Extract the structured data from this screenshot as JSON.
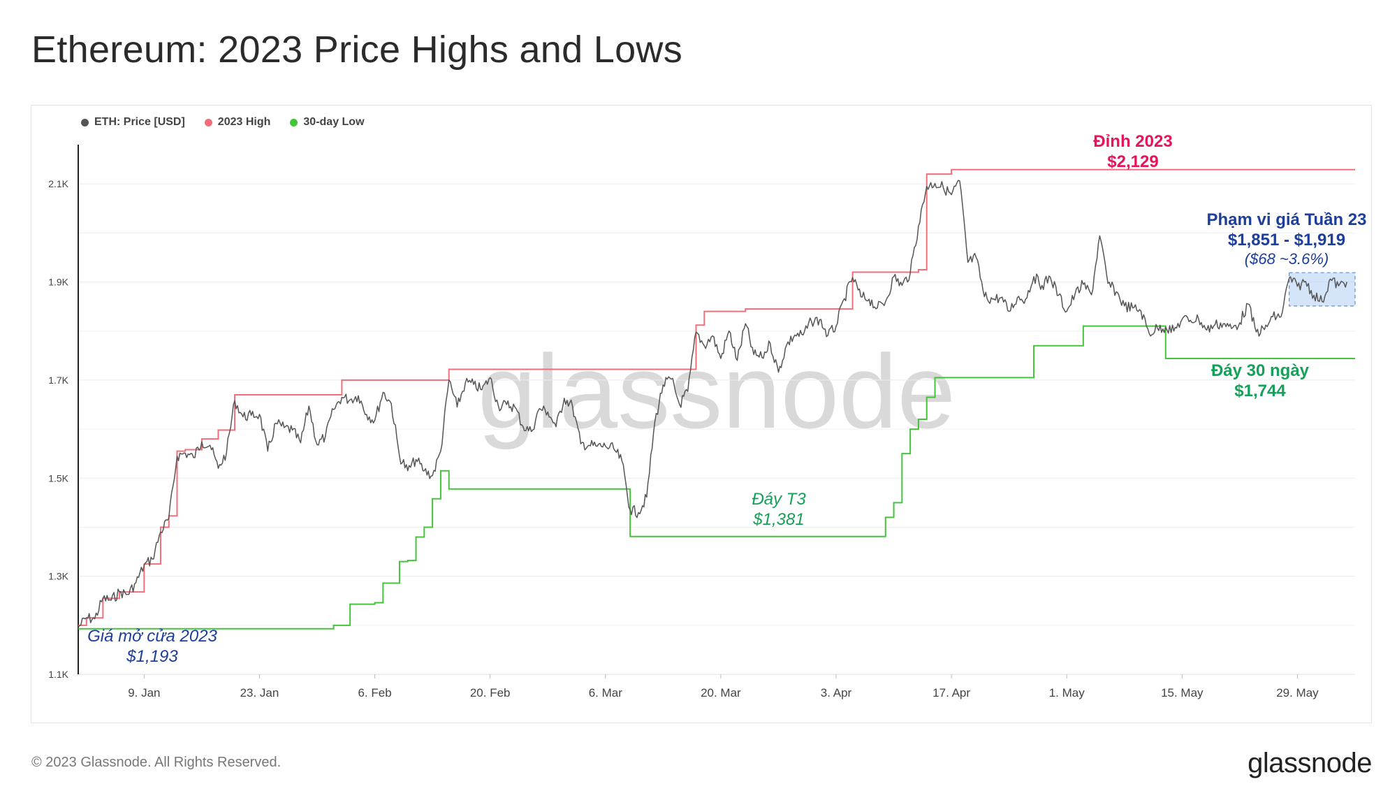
{
  "title": "Ethereum: 2023 Price Highs and Lows",
  "footer": {
    "copyright": "© 2023 Glassnode. All Rights Reserved.",
    "logo": "glassnode"
  },
  "watermark": "glassnode",
  "colors": {
    "price": "#555555",
    "high": "#f26e7b",
    "low": "#43c43b",
    "band": "#9fc4f2"
  },
  "chart_data": {
    "type": "line",
    "xlabel": "",
    "ylabel": "",
    "ylim": [
      1100,
      2180
    ],
    "y_ticks": [
      {
        "v": 1100,
        "label": "1.1K"
      },
      {
        "v": 1300,
        "label": "1.3K"
      },
      {
        "v": 1500,
        "label": "1.5K"
      },
      {
        "v": 1700,
        "label": "1.7K"
      },
      {
        "v": 1900,
        "label": "1.9K"
      },
      {
        "v": 2100,
        "label": "2.1K"
      }
    ],
    "x_range": [
      "2023-01-01",
      "2023-06-05"
    ],
    "x_ticks": [
      {
        "date": "2023-01-09",
        "label": "9. Jan"
      },
      {
        "date": "2023-01-23",
        "label": "23. Jan"
      },
      {
        "date": "2023-02-06",
        "label": "6. Feb"
      },
      {
        "date": "2023-02-20",
        "label": "20. Feb"
      },
      {
        "date": "2023-03-06",
        "label": "6. Mar"
      },
      {
        "date": "2023-03-20",
        "label": "20. Mar"
      },
      {
        "date": "2023-04-03",
        "label": "3. Apr"
      },
      {
        "date": "2023-04-17",
        "label": "17. Apr"
      },
      {
        "date": "2023-05-01",
        "label": "1. May"
      },
      {
        "date": "2023-05-15",
        "label": "15. May"
      },
      {
        "date": "2023-05-29",
        "label": "29. May"
      }
    ],
    "legend": [
      {
        "name": "ETH: Price [USD]",
        "color": "#555555"
      },
      {
        "name": "2023 High",
        "color": "#f26e7b"
      },
      {
        "name": "30-day Low",
        "color": "#43c43b"
      }
    ],
    "series": [
      {
        "name": "ETH: Price [USD]",
        "points": [
          [
            "2023-01-01",
            1196
          ],
          [
            "2023-01-02",
            1215
          ],
          [
            "2023-01-03",
            1213
          ],
          [
            "2023-01-04",
            1255
          ],
          [
            "2023-01-05",
            1251
          ],
          [
            "2023-01-06",
            1268
          ],
          [
            "2023-01-07",
            1263
          ],
          [
            "2023-01-08",
            1287
          ],
          [
            "2023-01-09",
            1322
          ],
          [
            "2023-01-10",
            1335
          ],
          [
            "2023-01-11",
            1390
          ],
          [
            "2023-01-12",
            1418
          ],
          [
            "2023-01-13",
            1545
          ],
          [
            "2023-01-14",
            1551
          ],
          [
            "2023-01-15",
            1542
          ],
          [
            "2023-01-16",
            1574
          ],
          [
            "2023-01-17",
            1567
          ],
          [
            "2023-01-18",
            1520
          ],
          [
            "2023-01-19",
            1552
          ],
          [
            "2023-01-20",
            1658
          ],
          [
            "2023-01-21",
            1625
          ],
          [
            "2023-01-22",
            1628
          ],
          [
            "2023-01-23",
            1630
          ],
          [
            "2023-01-24",
            1555
          ],
          [
            "2023-01-25",
            1612
          ],
          [
            "2023-01-26",
            1603
          ],
          [
            "2023-01-27",
            1598
          ],
          [
            "2023-01-28",
            1572
          ],
          [
            "2023-01-29",
            1647
          ],
          [
            "2023-01-30",
            1568
          ],
          [
            "2023-01-31",
            1585
          ],
          [
            "2023-02-01",
            1640
          ],
          [
            "2023-02-02",
            1665
          ],
          [
            "2023-02-03",
            1660
          ],
          [
            "2023-02-04",
            1668
          ],
          [
            "2023-02-05",
            1630
          ],
          [
            "2023-02-06",
            1618
          ],
          [
            "2023-02-07",
            1675
          ],
          [
            "2023-02-08",
            1652
          ],
          [
            "2023-02-09",
            1545
          ],
          [
            "2023-02-10",
            1515
          ],
          [
            "2023-02-11",
            1538
          ],
          [
            "2023-02-12",
            1515
          ],
          [
            "2023-02-13",
            1505
          ],
          [
            "2023-02-14",
            1555
          ],
          [
            "2023-02-15",
            1700
          ],
          [
            "2023-02-16",
            1645
          ],
          [
            "2023-02-17",
            1695
          ],
          [
            "2023-02-18",
            1691
          ],
          [
            "2023-02-19",
            1680
          ],
          [
            "2023-02-20",
            1705
          ],
          [
            "2023-02-21",
            1647
          ],
          [
            "2023-02-22",
            1650
          ],
          [
            "2023-02-23",
            1645
          ],
          [
            "2023-02-24",
            1605
          ],
          [
            "2023-02-25",
            1595
          ],
          [
            "2023-02-26",
            1642
          ],
          [
            "2023-02-27",
            1635
          ],
          [
            "2023-02-28",
            1605
          ],
          [
            "2023-03-01",
            1663
          ],
          [
            "2023-03-02",
            1647
          ],
          [
            "2023-03-03",
            1570
          ],
          [
            "2023-03-04",
            1567
          ],
          [
            "2023-03-05",
            1565
          ],
          [
            "2023-03-06",
            1565
          ],
          [
            "2023-03-07",
            1560
          ],
          [
            "2023-03-08",
            1535
          ],
          [
            "2023-03-09",
            1435
          ],
          [
            "2023-03-10",
            1430
          ],
          [
            "2023-03-11",
            1461
          ],
          [
            "2023-03-12",
            1615
          ],
          [
            "2023-03-13",
            1690
          ],
          [
            "2023-03-14",
            1702
          ],
          [
            "2023-03-15",
            1650
          ],
          [
            "2023-03-16",
            1677
          ],
          [
            "2023-03-17",
            1798
          ],
          [
            "2023-03-18",
            1770
          ],
          [
            "2023-03-19",
            1790
          ],
          [
            "2023-03-20",
            1744
          ],
          [
            "2023-03-21",
            1800
          ],
          [
            "2023-03-22",
            1740
          ],
          [
            "2023-03-23",
            1815
          ],
          [
            "2023-03-24",
            1752
          ],
          [
            "2023-03-25",
            1746
          ],
          [
            "2023-03-26",
            1775
          ],
          [
            "2023-03-27",
            1716
          ],
          [
            "2023-03-28",
            1772
          ],
          [
            "2023-03-29",
            1792
          ],
          [
            "2023-03-30",
            1792
          ],
          [
            "2023-03-31",
            1820
          ],
          [
            "2023-04-01",
            1823
          ],
          [
            "2023-04-02",
            1791
          ],
          [
            "2023-04-03",
            1810
          ],
          [
            "2023-04-04",
            1866
          ],
          [
            "2023-04-05",
            1909
          ],
          [
            "2023-04-06",
            1870
          ],
          [
            "2023-04-07",
            1865
          ],
          [
            "2023-04-08",
            1847
          ],
          [
            "2023-04-09",
            1860
          ],
          [
            "2023-04-10",
            1911
          ],
          [
            "2023-04-11",
            1893
          ],
          [
            "2023-04-12",
            1918
          ],
          [
            "2023-04-13",
            2014
          ],
          [
            "2023-04-14",
            2095
          ],
          [
            "2023-04-15",
            2101
          ],
          [
            "2023-04-16",
            2093
          ],
          [
            "2023-04-17",
            2078
          ],
          [
            "2023-04-18",
            2106
          ],
          [
            "2023-04-19",
            1940
          ],
          [
            "2023-04-20",
            1950
          ],
          [
            "2023-04-21",
            1870
          ],
          [
            "2023-04-22",
            1865
          ],
          [
            "2023-04-23",
            1868
          ],
          [
            "2023-04-24",
            1840
          ],
          [
            "2023-04-25",
            1868
          ],
          [
            "2023-04-26",
            1865
          ],
          [
            "2023-04-27",
            1911
          ],
          [
            "2023-04-28",
            1893
          ],
          [
            "2023-04-29",
            1910
          ],
          [
            "2023-04-30",
            1873
          ],
          [
            "2023-05-01",
            1840
          ],
          [
            "2023-05-02",
            1875
          ],
          [
            "2023-05-03",
            1895
          ],
          [
            "2023-05-04",
            1874
          ],
          [
            "2023-05-05",
            1994
          ],
          [
            "2023-05-06",
            1897
          ],
          [
            "2023-05-07",
            1880
          ],
          [
            "2023-05-08",
            1851
          ],
          [
            "2023-05-09",
            1847
          ],
          [
            "2023-05-10",
            1841
          ],
          [
            "2023-05-11",
            1795
          ],
          [
            "2023-05-12",
            1806
          ],
          [
            "2023-05-13",
            1808
          ],
          [
            "2023-05-14",
            1800
          ],
          [
            "2023-05-15",
            1824
          ],
          [
            "2023-05-16",
            1822
          ],
          [
            "2023-05-17",
            1825
          ],
          [
            "2023-05-18",
            1802
          ],
          [
            "2023-05-19",
            1813
          ],
          [
            "2023-05-20",
            1815
          ],
          [
            "2023-05-21",
            1805
          ],
          [
            "2023-05-22",
            1817
          ],
          [
            "2023-05-23",
            1855
          ],
          [
            "2023-05-24",
            1798
          ],
          [
            "2023-05-25",
            1803
          ],
          [
            "2023-05-26",
            1829
          ],
          [
            "2023-05-27",
            1829
          ],
          [
            "2023-05-28",
            1908
          ],
          [
            "2023-05-29",
            1891
          ],
          [
            "2023-05-30",
            1901
          ],
          [
            "2023-05-31",
            1873
          ],
          [
            "2023-06-01",
            1860
          ],
          [
            "2023-06-02",
            1906
          ],
          [
            "2023-06-03",
            1892
          ],
          [
            "2023-06-04",
            1900
          ]
        ]
      },
      {
        "name": "2023 High",
        "points": [
          [
            "2023-01-01",
            1200
          ],
          [
            "2023-01-02",
            1215
          ],
          [
            "2023-01-04",
            1255
          ],
          [
            "2023-01-06",
            1268
          ],
          [
            "2023-01-09",
            1325
          ],
          [
            "2023-01-11",
            1400
          ],
          [
            "2023-01-12",
            1423
          ],
          [
            "2023-01-13",
            1555
          ],
          [
            "2023-01-14",
            1558
          ],
          [
            "2023-01-16",
            1580
          ],
          [
            "2023-01-18",
            1598
          ],
          [
            "2023-01-20",
            1670
          ],
          [
            "2023-01-29",
            1670
          ],
          [
            "2023-02-02",
            1700
          ],
          [
            "2023-02-15",
            1722
          ],
          [
            "2023-03-16",
            1722
          ],
          [
            "2023-03-17",
            1812
          ],
          [
            "2023-03-18",
            1840
          ],
          [
            "2023-03-23",
            1845
          ],
          [
            "2023-04-04",
            1845
          ],
          [
            "2023-04-05",
            1920
          ],
          [
            "2023-04-13",
            1925
          ],
          [
            "2023-04-14",
            2120
          ],
          [
            "2023-04-17",
            2129
          ],
          [
            "2023-06-05",
            2129
          ]
        ]
      },
      {
        "name": "30-day Low",
        "points": [
          [
            "2023-01-01",
            1193
          ],
          [
            "2023-01-31",
            1193
          ],
          [
            "2023-02-01",
            1200
          ],
          [
            "2023-02-03",
            1243
          ],
          [
            "2023-02-06",
            1246
          ],
          [
            "2023-02-07",
            1286
          ],
          [
            "2023-02-09",
            1330
          ],
          [
            "2023-02-10",
            1332
          ],
          [
            "2023-02-11",
            1380
          ],
          [
            "2023-02-12",
            1400
          ],
          [
            "2023-02-13",
            1458
          ],
          [
            "2023-02-14",
            1515
          ],
          [
            "2023-02-15",
            1478
          ],
          [
            "2023-03-08",
            1478
          ],
          [
            "2023-03-09",
            1381
          ],
          [
            "2023-04-08",
            1381
          ],
          [
            "2023-04-09",
            1420
          ],
          [
            "2023-04-10",
            1450
          ],
          [
            "2023-04-11",
            1550
          ],
          [
            "2023-04-12",
            1600
          ],
          [
            "2023-04-13",
            1620
          ],
          [
            "2023-04-14",
            1665
          ],
          [
            "2023-04-15",
            1705
          ],
          [
            "2023-04-26",
            1705
          ],
          [
            "2023-04-27",
            1770
          ],
          [
            "2023-05-02",
            1770
          ],
          [
            "2023-05-03",
            1810
          ],
          [
            "2023-05-12",
            1810
          ],
          [
            "2023-05-13",
            1744
          ],
          [
            "2023-06-05",
            1744
          ]
        ]
      }
    ],
    "band": {
      "x0": "2023-05-28",
      "x1": "2023-06-05",
      "y0": 1851,
      "y1": 1919
    },
    "annotations": [
      {
        "lines": [
          "Đỉnh 2023",
          "$2,129"
        ],
        "color": "#e6145c",
        "style": "bold"
      },
      {
        "lines": [
          "Phạm vi giá Tuần 23",
          "$1,851 - $1,919"
        ],
        "color": "#1d3f9a",
        "style": "bold"
      },
      {
        "lines": [
          "($68 ~3.6%)"
        ],
        "color": "#1d3f9a",
        "style": "italic"
      },
      {
        "lines": [
          "Đáy 30 ngày",
          "$1,744"
        ],
        "color": "#16a05a",
        "style": "bold"
      },
      {
        "lines": [
          "Đáy T3",
          "$1,381"
        ],
        "color": "#16a05a",
        "style": "italic"
      },
      {
        "lines": [
          "Giá mở cửa 2023",
          "$1,193"
        ],
        "color": "#1d3f9a",
        "style": "italic"
      }
    ]
  }
}
